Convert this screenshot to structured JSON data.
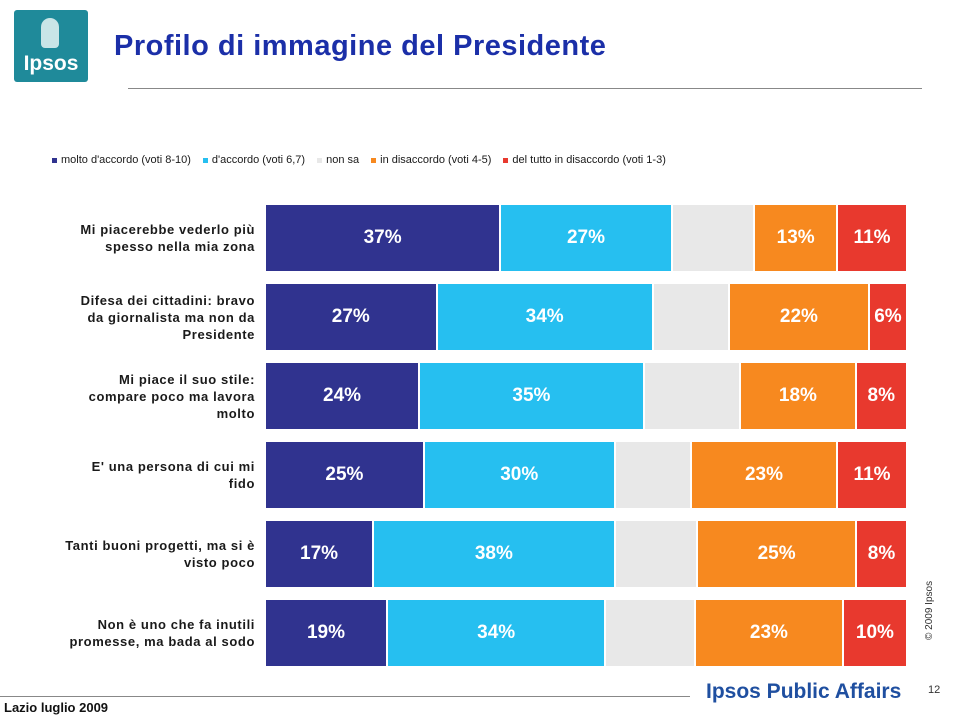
{
  "header": {
    "logo_text": "Ipsos",
    "title": "Profilo di immagine del Presidente"
  },
  "footer": {
    "left_text": "Lazio luglio 2009",
    "brand": "Ipsos Public Affairs",
    "page_number": "12",
    "copyright": "© 2009 Ipsos"
  },
  "colors": {
    "molto": "#30338f",
    "accordo": "#26bff0",
    "nonsa": "#e8e8e8",
    "disaccordo": "#f7891f",
    "deltutto": "#e8392e",
    "title": "#1b2fa8"
  },
  "chart_data": {
    "type": "bar",
    "orientation": "horizontal",
    "stacked": true,
    "legend_position": "top",
    "categories": [
      [
        "Mi piacerebbe vederlo più",
        "spesso nella mia zona"
      ],
      [
        "Difesa dei cittadini: bravo",
        "da giornalista ma non da",
        "Presidente"
      ],
      [
        "Mi piace il suo stile:",
        "compare poco ma lavora",
        "molto"
      ],
      [
        "E' una persona di cui mi",
        "fido"
      ],
      [
        "Tanti buoni progetti, ma si è",
        "visto poco"
      ],
      [
        "Non è uno che fa inutili",
        "promesse, ma bada al sodo"
      ]
    ],
    "series": [
      {
        "name": "molto d'accordo (voti 8-10)",
        "color_key": "molto",
        "values": [
          37,
          27,
          24,
          25,
          17,
          19
        ]
      },
      {
        "name": "d'accordo (voti 6,7)",
        "color_key": "accordo",
        "values": [
          27,
          34,
          35,
          30,
          38,
          34
        ]
      },
      {
        "name": "non sa",
        "color_key": "nonsa",
        "values": [
          13,
          12,
          15,
          12,
          13,
          14
        ]
      },
      {
        "name": "in disaccordo (voti 4-5)",
        "color_key": "disaccordo",
        "values": [
          13,
          22,
          18,
          23,
          25,
          23
        ]
      },
      {
        "name": "del tutto in disaccordo (voti 1-3)",
        "color_key": "deltutto",
        "values": [
          11,
          6,
          8,
          11,
          8,
          10
        ]
      }
    ],
    "labeled_series": [
      0,
      1,
      3,
      4
    ],
    "value_suffix": "%"
  }
}
